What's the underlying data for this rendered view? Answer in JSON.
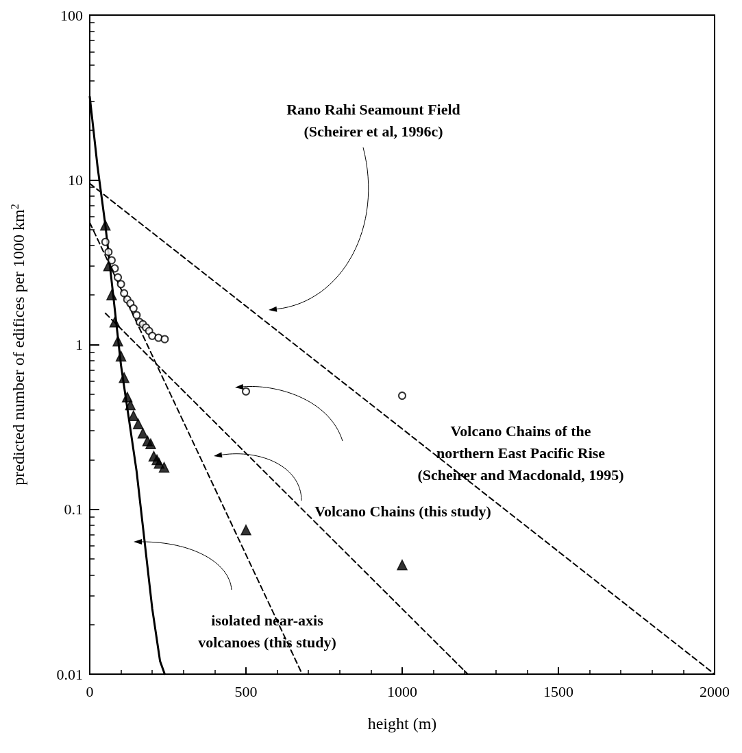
{
  "chart_data": {
    "type": "scatter",
    "xlabel": "height (m)",
    "ylabel": "predicted number of edifices per 1000 km$^{2}$",
    "xlim": [
      0,
      2000
    ],
    "xticks": [
      0,
      500,
      1000,
      1500,
      2000
    ],
    "ylim": [
      0.01,
      100
    ],
    "yticks": [
      0.01,
      0.1,
      1,
      10,
      100
    ],
    "log": "y",
    "grid": false,
    "annotations": [
      "Rano Rahi Seamount Field\n(Scheirer et al, 1996c)",
      "Volcano Chains of the\nnorthern East Pacific Rise\n(Scheirer and Macdonald, 1995)",
      "Volcano Chains (this study)",
      "isolated near-axis\nvolcanoes (this study)"
    ],
    "series": [
      {
        "marker": "circle",
        "color": "#000000",
        "x": [
          50,
          60,
          70,
          80,
          90,
          100,
          110,
          120,
          130,
          140,
          150,
          160,
          170,
          180,
          190,
          200,
          220,
          240,
          500,
          1000
        ],
        "values": [
          4.2,
          3.65,
          3.25,
          2.9,
          2.56,
          2.33,
          2.05,
          1.88,
          1.78,
          1.66,
          1.51,
          1.37,
          1.33,
          1.27,
          1.21,
          1.13,
          1.1,
          1.08,
          0.52,
          0.49
        ]
      },
      {
        "marker": "triangle",
        "color": "#000000",
        "x": [
          50,
          60,
          70,
          80,
          90,
          100,
          110,
          120,
          130,
          140,
          155,
          170,
          185,
          195,
          205,
          215,
          222,
          238,
          500,
          1000
        ],
        "values": [
          5.3,
          3.0,
          2.0,
          1.37,
          1.05,
          0.85,
          0.63,
          0.48,
          0.43,
          0.37,
          0.33,
          0.29,
          0.26,
          0.25,
          0.21,
          0.2,
          0.19,
          0.18,
          0.075,
          0.046
        ]
      },
      {
        "type": "line",
        "marker": "none",
        "line_style": "solid",
        "color": "#000000",
        "x": [
          0,
          25,
          50,
          75,
          100,
          150,
          200,
          225,
          240
        ],
        "values": [
          32,
          12,
          5.3,
          2.0,
          0.75,
          0.17,
          0.025,
          0.012,
          0.01
        ]
      },
      {
        "type": "line",
        "marker": "none",
        "line_style": "dashed",
        "color": "#000000",
        "x": [
          0,
          680
        ],
        "values": [
          5.5,
          0.01
        ]
      },
      {
        "type": "line",
        "marker": "none",
        "line_style": "dashed",
        "color": "#000000",
        "x": [
          50,
          1210
        ],
        "values": [
          1.55,
          0.01
        ]
      },
      {
        "type": "line",
        "marker": "none",
        "line_style": "dashed",
        "color": "#000000",
        "x": [
          0,
          2000
        ],
        "values": [
          9.5,
          0.01
        ]
      }
    ]
  }
}
